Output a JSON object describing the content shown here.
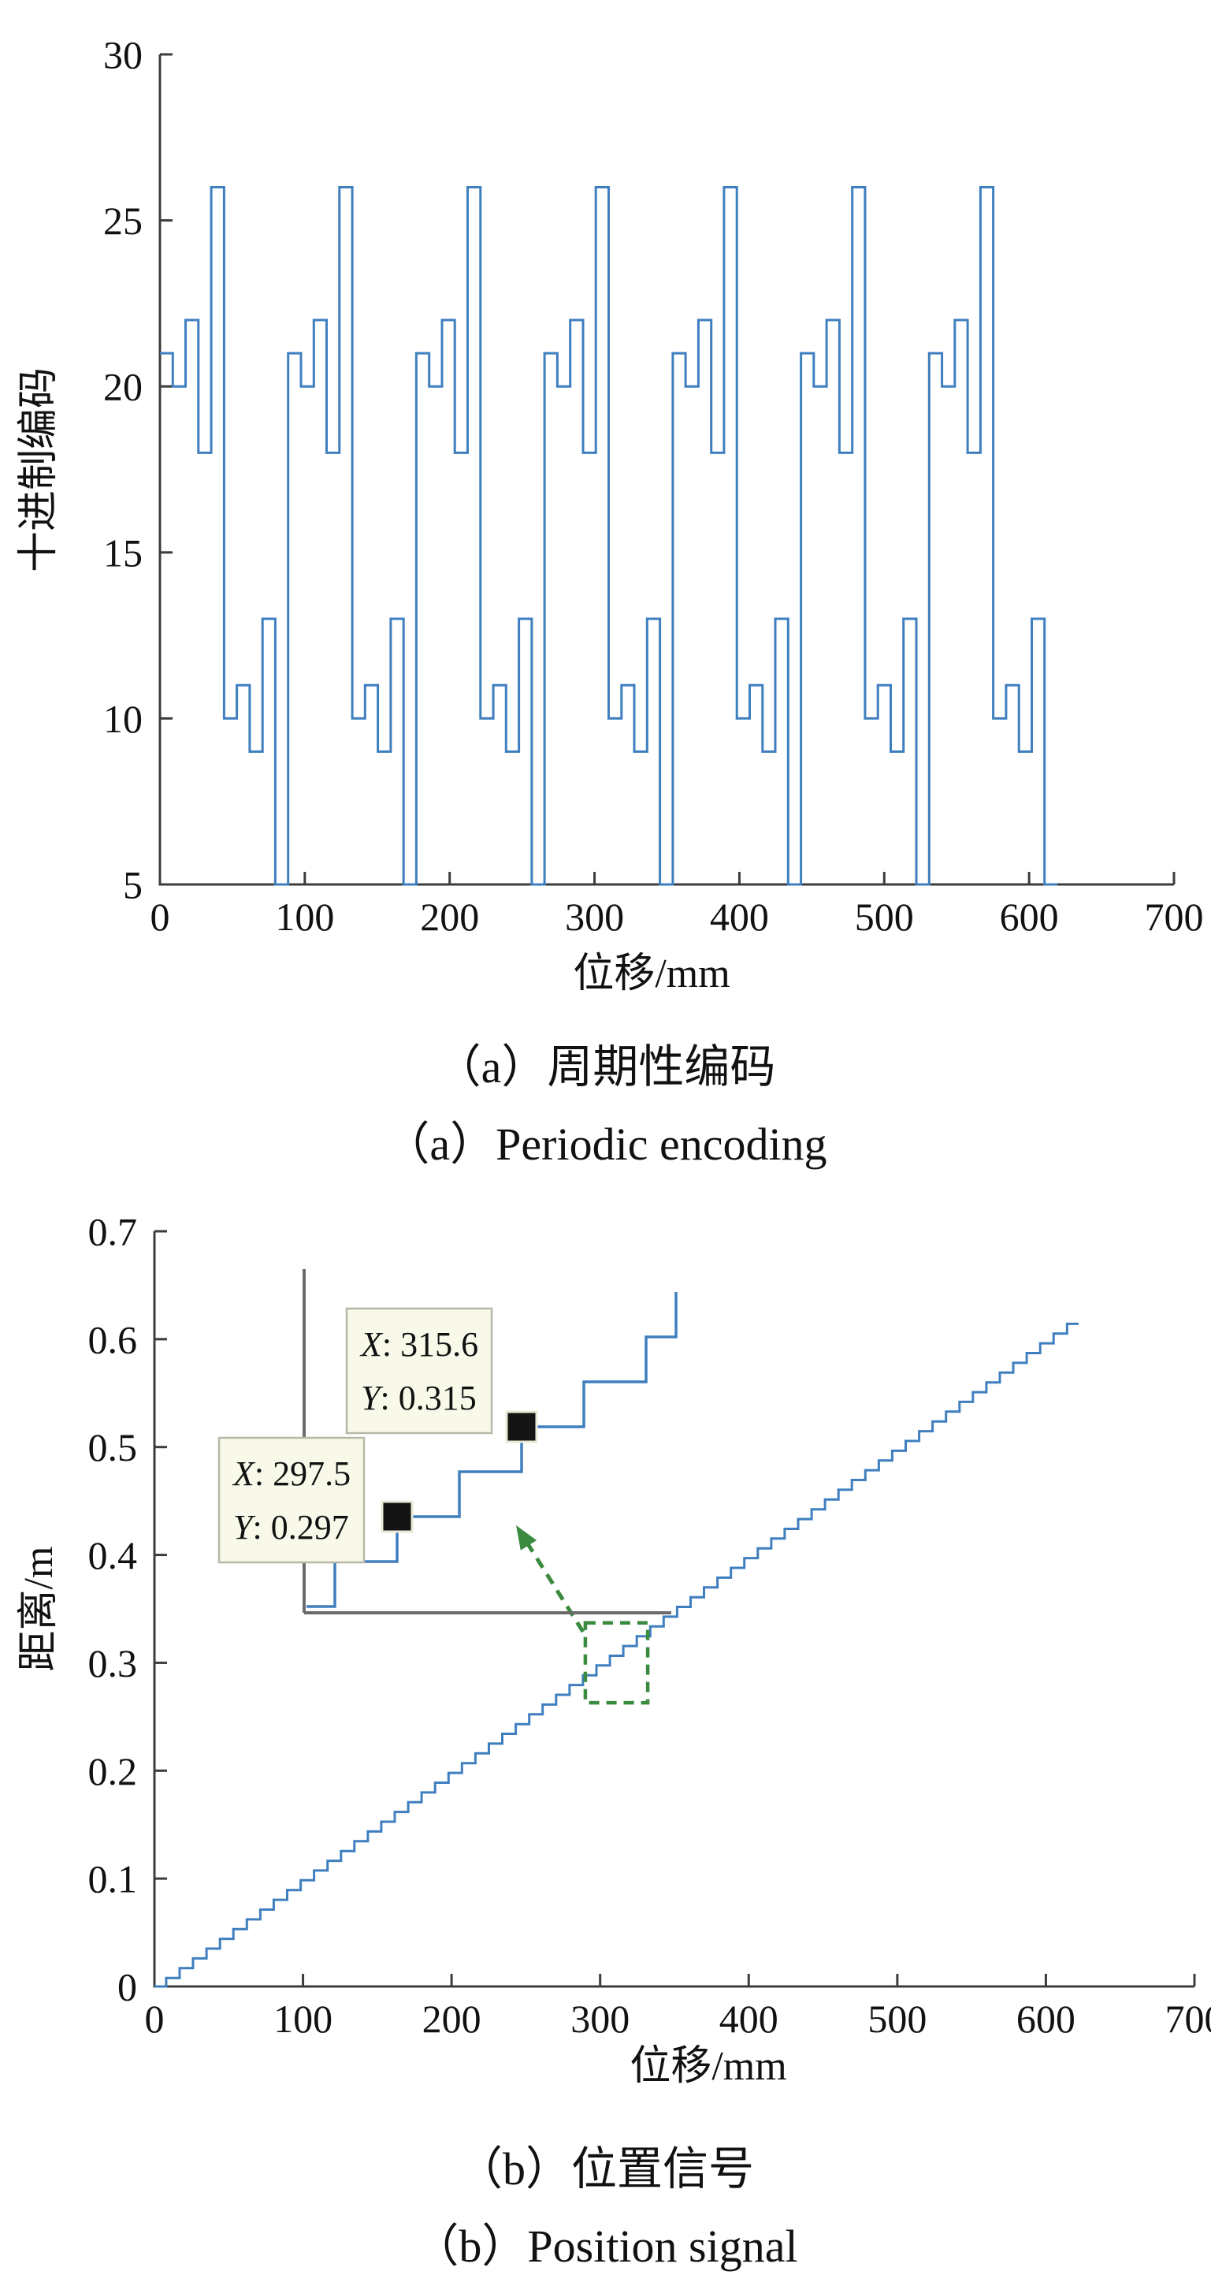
{
  "colors": {
    "line_blue": "#3f7fbf",
    "axis": "#3c3c3c",
    "inset_axis_gray": "#6b6b6b",
    "annotation_green": "#3a8a3f",
    "tooltip_bg": "#f9f9ea",
    "tooltip_border": "#b8b8a8",
    "marker_black": "#141414",
    "marker_outline": "#e9e9d5",
    "text": "#111111"
  },
  "chart_data": [
    {
      "type": "line",
      "subtype": "periodic-staircase",
      "title": "",
      "xlabel": "位移/mm",
      "ylabel": "十进制编码",
      "xlim": [
        0,
        700
      ],
      "ylim": [
        5,
        30
      ],
      "xtick_values": [
        0,
        100,
        200,
        300,
        400,
        500,
        600,
        700
      ],
      "xtick_labels": [
        "0",
        "100",
        "200",
        "300",
        "400",
        "500",
        "600",
        "700"
      ],
      "ytick_values": [
        5,
        10,
        15,
        20,
        25,
        30
      ],
      "ytick_labels": [
        "5",
        "10",
        "15",
        "20",
        "25",
        "30"
      ],
      "grid": false,
      "legend": null,
      "n_periods": 7,
      "period_mm": 88.5,
      "slot_width_mm": 8.85,
      "slot_values": [
        21,
        20,
        22,
        18,
        26,
        10,
        11,
        9,
        13,
        0
      ],
      "note": "decimal code staircase; the 0-value slot is clipped at the bottom axis (ylim 5)",
      "caption_zh": "（a）周期性编码",
      "caption_en": "（a）Periodic encoding"
    },
    {
      "type": "line",
      "subtype": "staircase",
      "title": "",
      "xlabel": "位移/mm",
      "ylabel": "距离/m",
      "xlim": [
        0,
        700
      ],
      "ylim": [
        0,
        0.7
      ],
      "xtick_values": [
        0,
        100,
        200,
        300,
        400,
        500,
        600,
        700
      ],
      "xtick_labels": [
        "0",
        "100",
        "200",
        "300",
        "400",
        "500",
        "600",
        "700"
      ],
      "ytick_values": [
        0,
        0.1,
        0.2,
        0.3,
        0.4,
        0.5,
        0.6,
        0.7
      ],
      "ytick_labels": [
        "0",
        "0.1",
        "0.2",
        "0.3",
        "0.4",
        "0.5",
        "0.6",
        "0.7"
      ],
      "grid": false,
      "legend": null,
      "stair": {
        "first_rise_mm": 7.9,
        "step_mm": 9.05,
        "end_mm": 622,
        "y_equals_x_div": 1000
      },
      "zoom_region": {
        "x": [
          290,
          332
        ],
        "y": [
          0.263,
          0.337
        ]
      },
      "datatips": [
        {
          "x": 297.5,
          "y": 0.297,
          "marker_step": 1,
          "lines": [
            {
              "var": "X",
              "rest": ": 297.5"
            },
            {
              "var": "Y",
              "rest": ": 0.297"
            }
          ]
        },
        {
          "x": 315.6,
          "y": 0.315,
          "marker_step": 3,
          "lines": [
            {
              "var": "X",
              "rest": ": 315.6"
            },
            {
              "var": "Y",
              "rest": ": 0.315"
            }
          ]
        }
      ],
      "caption_zh": "（b）位置信号",
      "caption_en": "（b）Position signal"
    }
  ]
}
